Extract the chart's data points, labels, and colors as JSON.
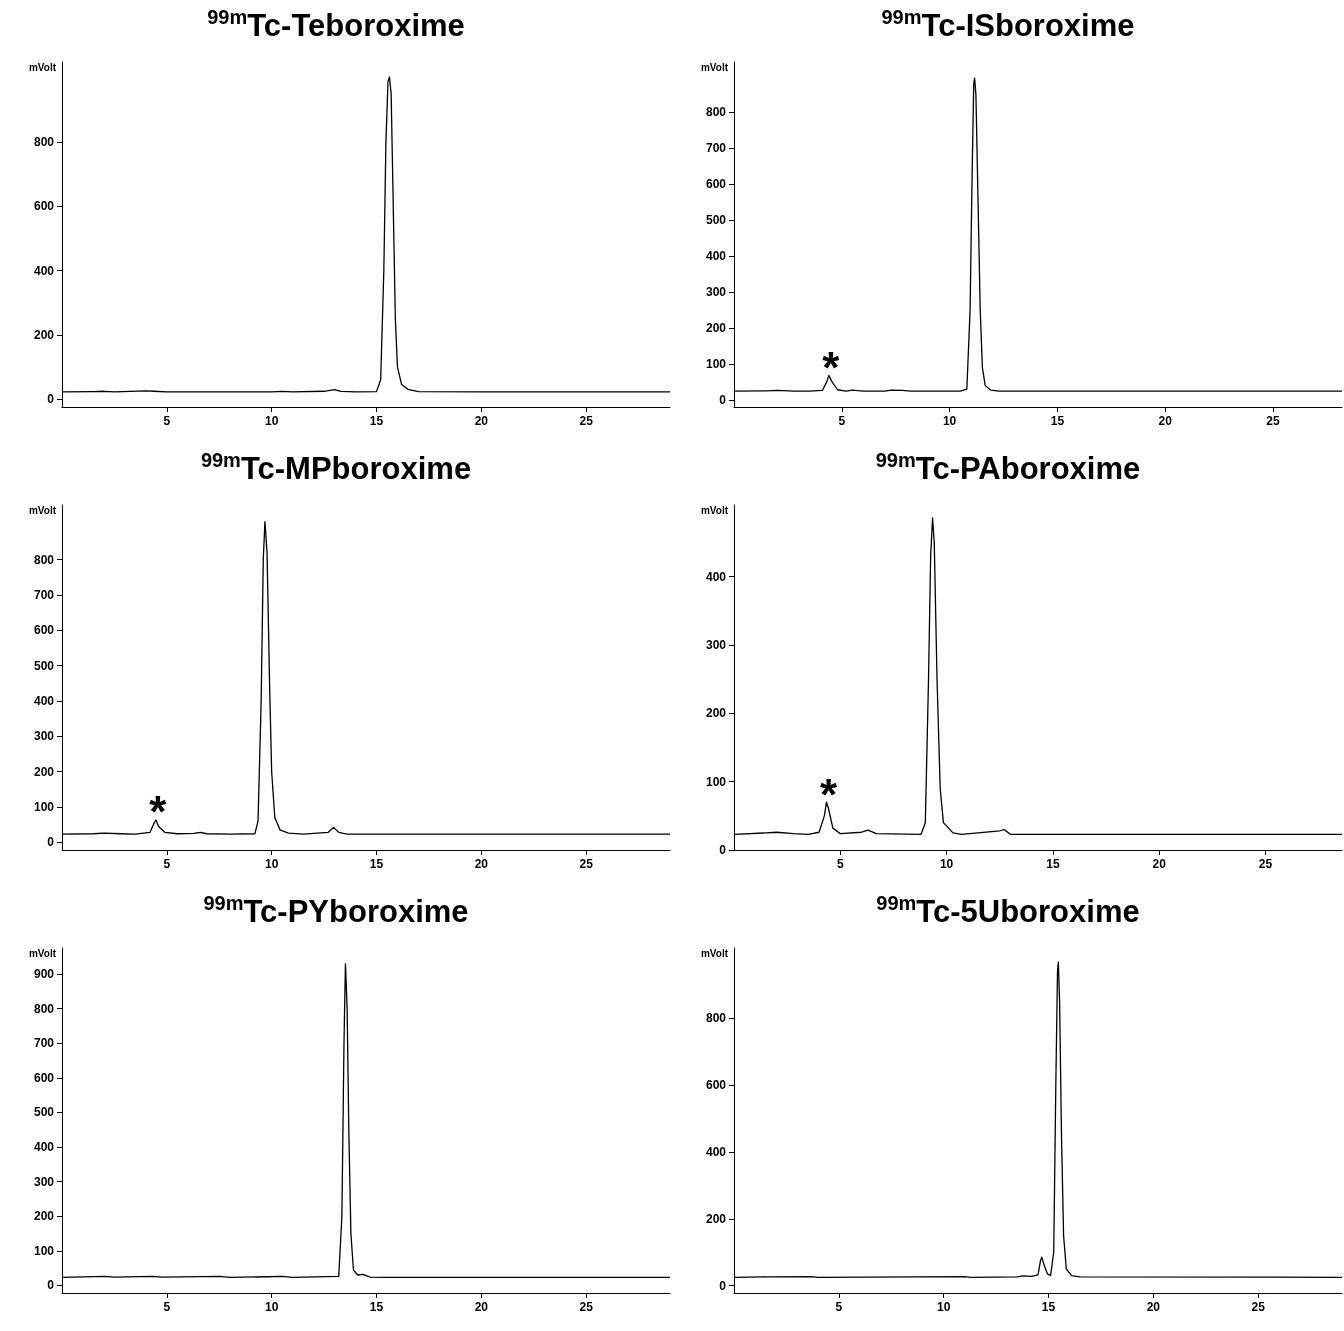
{
  "chart_data": [
    {
      "type": "line",
      "title": "$^{99m}$Tc-Teboroxime",
      "ylabel": "mVolt",
      "color": "#000000",
      "marker": "none",
      "xlim": [
        0,
        29
      ],
      "ylim": [
        -25,
        1050
      ],
      "xticks": [
        5,
        10,
        15,
        20,
        25
      ],
      "yticks": [
        0,
        200,
        400,
        600,
        800
      ],
      "x": [
        0,
        1.5,
        2,
        2.5,
        4,
        4.4,
        5,
        10,
        10.5,
        11,
        12.5,
        13,
        13.3,
        14,
        15,
        15.2,
        15.35,
        15.45,
        15.55,
        15.62,
        15.7,
        15.8,
        15.9,
        16.0,
        16.2,
        16.5,
        17,
        20,
        29
      ],
      "values": [
        22,
        23,
        24,
        22,
        25,
        24,
        22,
        22,
        24,
        22,
        24,
        29,
        24,
        22,
        23,
        60,
        400,
        800,
        990,
        1003,
        950,
        600,
        250,
        100,
        45,
        30,
        23,
        22,
        22
      ]
    },
    {
      "type": "line",
      "title": "$^{99m}$Tc-ISboroxime",
      "ylabel": "mVolt",
      "color": "#000000",
      "marker": "none",
      "xlim": [
        0,
        28.2
      ],
      "ylim": [
        -20,
        940
      ],
      "xticks": [
        5,
        10,
        15,
        20,
        25
      ],
      "yticks": [
        0,
        100,
        200,
        300,
        400,
        500,
        600,
        700,
        800
      ],
      "x": [
        0,
        1.5,
        2,
        2.8,
        3.5,
        4.1,
        4.3,
        4.4,
        4.55,
        4.8,
        5.2,
        5.5,
        6,
        7,
        7.3,
        7.8,
        8.2,
        10.5,
        10.8,
        10.95,
        11.05,
        11.12,
        11.16,
        11.22,
        11.32,
        11.42,
        11.52,
        11.65,
        11.9,
        12.3,
        28.2
      ],
      "values": [
        24,
        25,
        26,
        24,
        24,
        26,
        50,
        68,
        50,
        28,
        24,
        27,
        24,
        24,
        27,
        26,
        24,
        24,
        30,
        250,
        650,
        880,
        895,
        850,
        550,
        250,
        90,
        40,
        27,
        24,
        24
      ],
      "annotations": [
        {
          "text": "*",
          "x": 4.4,
          "y": 68
        }
      ]
    },
    {
      "type": "line",
      "title": "$^{99m}$Tc-MPboroxime",
      "ylabel": "mVolt",
      "color": "#000000",
      "marker": "none",
      "xlim": [
        0,
        29
      ],
      "ylim": [
        -22,
        955
      ],
      "xticks": [
        5,
        10,
        15,
        20,
        25
      ],
      "yticks": [
        0,
        100,
        200,
        300,
        400,
        500,
        600,
        700,
        800
      ],
      "x": [
        0,
        1.5,
        2,
        2.8,
        3.5,
        4.2,
        4.4,
        4.48,
        4.6,
        4.9,
        5.5,
        6.3,
        6.6,
        6.9,
        8,
        9.2,
        9.35,
        9.5,
        9.6,
        9.68,
        9.78,
        9.9,
        10.0,
        10.15,
        10.4,
        10.8,
        11.5,
        12.7,
        12.95,
        13.2,
        13.6,
        29
      ],
      "values": [
        23,
        24,
        26,
        24,
        23,
        28,
        55,
        63,
        45,
        28,
        24,
        25,
        28,
        24,
        23,
        24,
        60,
        400,
        800,
        908,
        820,
        450,
        200,
        70,
        35,
        26,
        23,
        28,
        42,
        28,
        23,
        23
      ],
      "annotations": [
        {
          "text": "*",
          "x": 4.48,
          "y": 63
        }
      ]
    },
    {
      "type": "line",
      "title": "$^{99m}$Tc-PAboroxime",
      "ylabel": "mVolt",
      "color": "#000000",
      "marker": "none",
      "xlim": [
        0,
        28.6
      ],
      "ylim": [
        0,
        505
      ],
      "xticks": [
        5,
        10,
        15,
        20,
        25
      ],
      "yticks": [
        0,
        100,
        200,
        300,
        400
      ],
      "x": [
        0,
        1.5,
        2,
        2.8,
        3.5,
        4.0,
        4.25,
        4.35,
        4.45,
        4.65,
        5,
        6,
        6.3,
        6.7,
        8.8,
        9.0,
        9.15,
        9.25,
        9.34,
        9.42,
        9.55,
        9.7,
        9.85,
        10.3,
        10.7,
        12.5,
        12.7,
        13,
        28.6
      ],
      "values": [
        23,
        25,
        26,
        24,
        23,
        26,
        50,
        70,
        60,
        32,
        24,
        26,
        29,
        24,
        23,
        40,
        250,
        430,
        486,
        450,
        250,
        90,
        40,
        25,
        23,
        28,
        30,
        23,
        23
      ],
      "annotations": [
        {
          "text": "*",
          "x": 4.35,
          "y": 70
        }
      ]
    },
    {
      "type": "line",
      "title": "$^{99m}$Tc-PYboroxime",
      "ylabel": "mVolt",
      "color": "#000000",
      "marker": "none",
      "xlim": [
        0,
        29
      ],
      "ylim": [
        -22,
        975
      ],
      "xticks": [
        5,
        10,
        15,
        20,
        25
      ],
      "yticks": [
        0,
        100,
        200,
        300,
        400,
        500,
        600,
        700,
        800,
        900
      ],
      "x": [
        0,
        2,
        2.5,
        4.3,
        4.8,
        7.5,
        8,
        9.8,
        10.5,
        11,
        13.2,
        13.35,
        13.45,
        13.52,
        13.6,
        13.68,
        13.78,
        13.9,
        14.1,
        14.35,
        14.7,
        15.5,
        29
      ],
      "values": [
        23,
        26,
        24,
        26,
        24,
        26,
        23,
        25,
        26,
        23,
        26,
        200,
        700,
        930,
        800,
        450,
        150,
        45,
        30,
        32,
        24,
        23,
        23
      ]
    },
    {
      "type": "line",
      "title": "$^{99m}$Tc-5Uboroxime",
      "ylabel": "mVolt",
      "color": "#000000",
      "marker": "none",
      "xlim": [
        0,
        29
      ],
      "ylim": [
        -22,
        1010
      ],
      "xticks": [
        5,
        10,
        15,
        20,
        25
      ],
      "yticks": [
        0,
        200,
        400,
        600,
        800
      ],
      "x": [
        0,
        1.5,
        3.7,
        4,
        11,
        11.3,
        13.5,
        13.8,
        14.2,
        14.5,
        14.62,
        14.68,
        14.8,
        14.95,
        15.1,
        15.25,
        15.35,
        15.43,
        15.47,
        15.53,
        15.62,
        15.72,
        15.85,
        16.1,
        16.5,
        29
      ],
      "values": [
        25,
        26,
        27,
        25,
        27,
        25,
        26,
        29,
        28,
        32,
        75,
        85,
        60,
        35,
        30,
        100,
        600,
        940,
        968,
        850,
        450,
        150,
        50,
        30,
        26,
        25
      ]
    }
  ]
}
